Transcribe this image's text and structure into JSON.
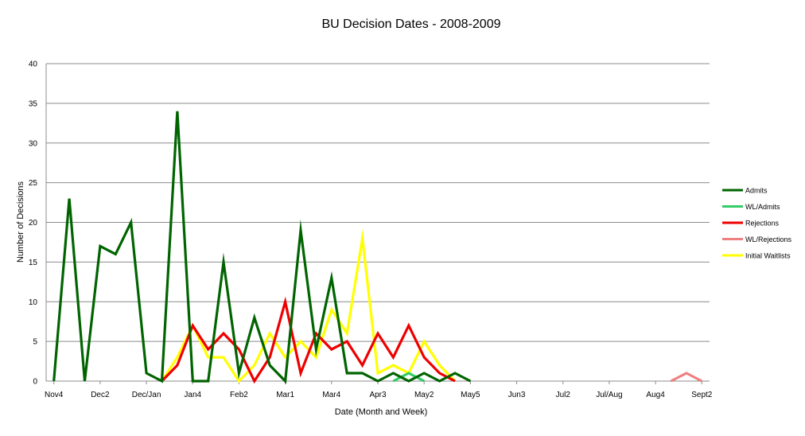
{
  "chart_data": {
    "type": "line",
    "title": "BU Decision Dates - 2008-2009",
    "xlabel": "Date (Month and Week)",
    "ylabel": "Number of Decisions",
    "ylim": [
      0,
      40
    ],
    "yticks": [
      0,
      5,
      10,
      15,
      20,
      25,
      30,
      35,
      40
    ],
    "grid": true,
    "legend_position": "right",
    "x_tick_labels": [
      "Nov4",
      "Dec2",
      "Dec/Jan",
      "Jan4",
      "Feb2",
      "Mar1",
      "Mar4",
      "Apr3",
      "May2",
      "May5",
      "Jun3",
      "Jul2",
      "Jul/Aug",
      "Aug4",
      "Sept2"
    ],
    "series": [
      {
        "name": "Admits",
        "color": "#006400",
        "values": [
          0,
          23,
          0,
          17,
          16,
          20,
          1,
          0,
          34,
          0,
          0,
          15,
          1,
          8,
          2,
          0,
          19,
          4,
          13,
          1,
          1,
          0,
          1,
          0,
          1,
          0,
          1,
          0
        ]
      },
      {
        "name": "WL/Admits",
        "color": "#33cc66",
        "x": [
          22,
          23,
          24
        ],
        "values": [
          0,
          1,
          0
        ]
      },
      {
        "name": "Rejections",
        "color": "#ee0000",
        "x": [
          7,
          8,
          9,
          10,
          11,
          12,
          13,
          14,
          15,
          16,
          17,
          18,
          19,
          20,
          21,
          22,
          23,
          24,
          25,
          26
        ],
        "values": [
          0,
          2,
          7,
          4,
          6,
          4,
          0,
          3,
          10,
          1,
          6,
          4,
          5,
          2,
          6,
          3,
          7,
          3,
          1,
          0
        ]
      },
      {
        "name": "WL/Rejections",
        "color": "#f08080",
        "x": [
          40,
          41,
          42
        ],
        "values": [
          0,
          1,
          0
        ]
      },
      {
        "name": "Initial Waitlists",
        "color": "#ffff00",
        "x": [
          7,
          8,
          9,
          10,
          11,
          12,
          13,
          14,
          15,
          16,
          17,
          18,
          19,
          20,
          21,
          22,
          23,
          24,
          25,
          26
        ],
        "values": [
          0,
          3,
          7,
          3,
          3,
          0,
          2,
          6,
          3,
          5,
          3,
          9,
          6,
          18,
          1,
          2,
          1,
          5,
          2,
          0
        ]
      }
    ]
  }
}
